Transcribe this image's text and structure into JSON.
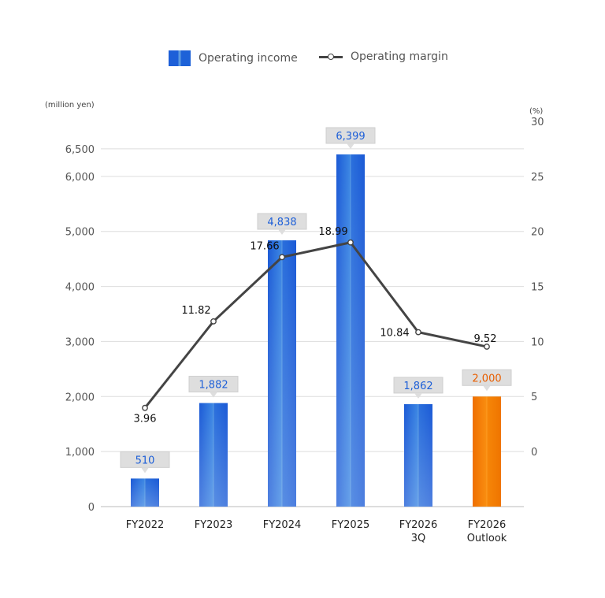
{
  "legend": {
    "bar_label": "Operating income",
    "line_label": "Operating margin"
  },
  "colors": {
    "bar_blue": "#1d5fd8",
    "bar_blue_light": "#5a9be0",
    "bar_orange": "#f07a00",
    "bar_orange_light": "#ff9a1a",
    "line": "#444444",
    "grid": "#dddddd",
    "callout_bg": "#dedede",
    "label_blue": "#1d5fd8",
    "label_orange": "#e85e00"
  },
  "chart_data": {
    "type": "bar",
    "categories": [
      [
        "FY2022"
      ],
      [
        "FY2023"
      ],
      [
        "FY2024"
      ],
      [
        "FY2025"
      ],
      [
        "FY2026",
        "3Q"
      ],
      [
        "FY2026",
        "Outlook"
      ]
    ],
    "series": [
      {
        "name": "Operating income",
        "type": "bar",
        "axis": "left",
        "values": [
          510,
          1882,
          4838,
          6399,
          1862,
          2000
        ],
        "labels": [
          "510",
          "1,882",
          "4,838",
          "6,399",
          "1,862",
          "2,000"
        ],
        "highlight": [
          false,
          false,
          false,
          false,
          false,
          true
        ]
      },
      {
        "name": "Operating margin",
        "type": "line",
        "axis": "right",
        "values": [
          3.96,
          11.82,
          17.66,
          18.99,
          10.84,
          9.52
        ],
        "labels": [
          "3.96",
          "11.82",
          "17.66",
          "18.99",
          "10.84",
          "9.52"
        ]
      }
    ],
    "left_axis": {
      "unit": "(million yen)",
      "ylim": [
        0,
        7000
      ],
      "ticks": [
        0,
        1000,
        2000,
        3000,
        4000,
        5000,
        6000,
        6500
      ],
      "tick_labels": [
        "0",
        "1,000",
        "2,000",
        "3,000",
        "4,000",
        "5,000",
        "6,000",
        "6,500"
      ]
    },
    "right_axis": {
      "unit": "(%)",
      "ticks": [
        0,
        5,
        10,
        15,
        20,
        25,
        30
      ],
      "tick_labels": [
        "0",
        "5",
        "10",
        "15",
        "20",
        "25",
        "30"
      ]
    },
    "grid": true
  }
}
